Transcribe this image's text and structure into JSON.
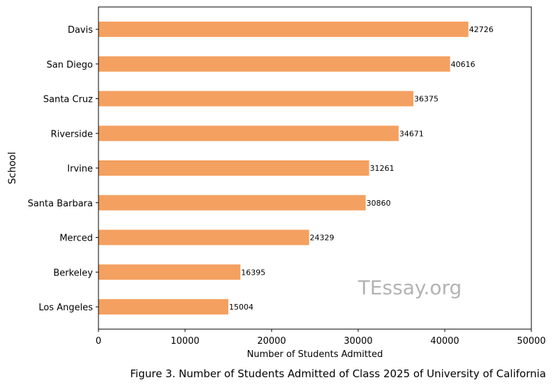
{
  "chart_data": {
    "type": "bar",
    "orientation": "horizontal",
    "categories": [
      "Davis",
      "San Diego",
      "Santa Cruz",
      "Riverside",
      "Irvine",
      "Santa Barbara",
      "Merced",
      "Berkeley",
      "Los Angeles"
    ],
    "values": [
      42726,
      40616,
      36375,
      34671,
      31261,
      30860,
      24329,
      16395,
      15004
    ],
    "xlabel": "Number of Students Admitted",
    "ylabel": "School",
    "xlim": [
      0,
      50000
    ],
    "xticks": [
      "0",
      "10000",
      "20000",
      "30000",
      "40000",
      "50000"
    ],
    "bar_color": "#f4a060",
    "grid": false,
    "data_labels": true
  },
  "watermark": "TEssay.org",
  "caption": "Figure 3. Number of Students Admitted of Class 2025 of University of California"
}
